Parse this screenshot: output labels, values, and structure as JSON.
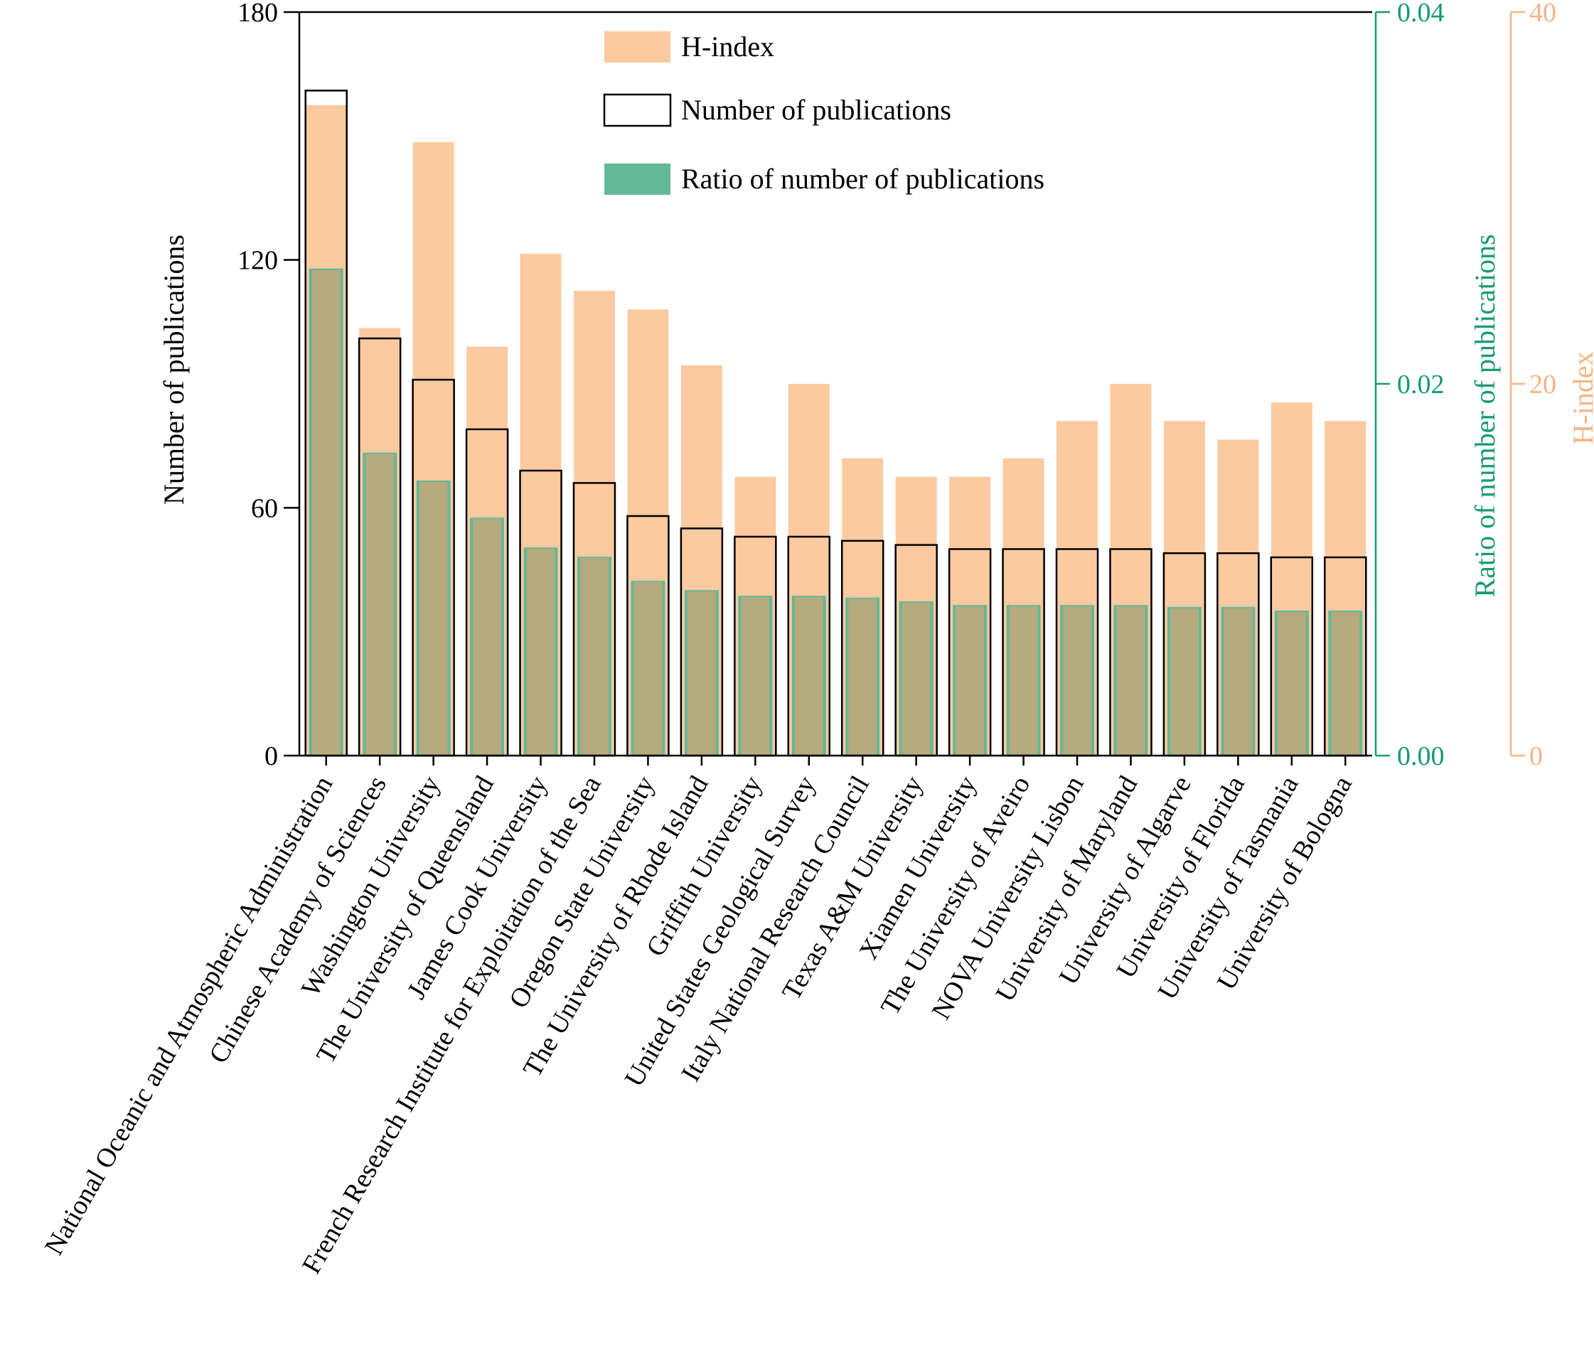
{
  "chart_data": {
    "type": "bar",
    "categories": [
      "National Oceanic and Atmospheric Administration",
      "Chinese Academy of Sciences",
      "Washington University",
      "The University of Queensland",
      "James Cook University",
      "French Research Institute for Exploitation of the Sea",
      "Oregon State University",
      "The University of Rhode Island",
      "Griffith University",
      "United States Geological Survey",
      "Italy National Research Council",
      "Texas A&M University",
      "Xiamen University",
      "The University of Aveiro",
      "NOVA University Lisbon",
      "University of Maryland",
      "University of Algarve",
      "University of Florida",
      "University of Tasmania",
      "University of Bologna"
    ],
    "series": [
      {
        "name": "H-index",
        "axis": "h-index",
        "values": [
          35,
          23,
          33,
          22,
          27,
          25,
          24,
          21,
          15,
          20,
          16,
          15,
          15,
          16,
          18,
          20,
          18,
          17,
          19,
          18
        ]
      },
      {
        "name": "Number of publications",
        "axis": "left",
        "values": [
          161,
          101,
          91,
          79,
          69,
          66,
          58,
          55,
          53,
          53,
          52,
          51,
          50,
          50,
          50,
          50,
          49,
          49,
          48,
          48
        ]
      },
      {
        "name": "Ratio of number of publications",
        "axis": "ratio",
        "values": [
          0.0262,
          0.0163,
          0.0148,
          0.0128,
          0.0112,
          0.0107,
          0.0094,
          0.0089,
          0.0086,
          0.0086,
          0.0085,
          0.0083,
          0.0081,
          0.0081,
          0.0081,
          0.0081,
          0.008,
          0.008,
          0.0078,
          0.0078
        ]
      }
    ],
    "axes": {
      "left": {
        "label": "Number of publications",
        "range": [
          0,
          180
        ],
        "ticks": [
          "0",
          "60",
          "120",
          "180"
        ]
      },
      "ratio": {
        "label": "Ratio of number of publications",
        "range": [
          0,
          0.04
        ],
        "ticks": [
          "0.00",
          "0.02",
          "0.04"
        ]
      },
      "hindex": {
        "label": "H-index",
        "range": [
          0,
          40
        ],
        "ticks": [
          "0",
          "20",
          "40"
        ]
      }
    },
    "legend": {
      "position": "top-center",
      "entries": [
        "H-index",
        "Number of publications",
        "Ratio of number of publications"
      ]
    },
    "colors": {
      "h_index": "#fccaa1",
      "ratio": "#63b898",
      "ratio_axis": "#159a72",
      "hindex_axis": "#f6b383",
      "publications_outline": "#000000",
      "overlap": "#b5ab7e"
    },
    "grid": false
  }
}
